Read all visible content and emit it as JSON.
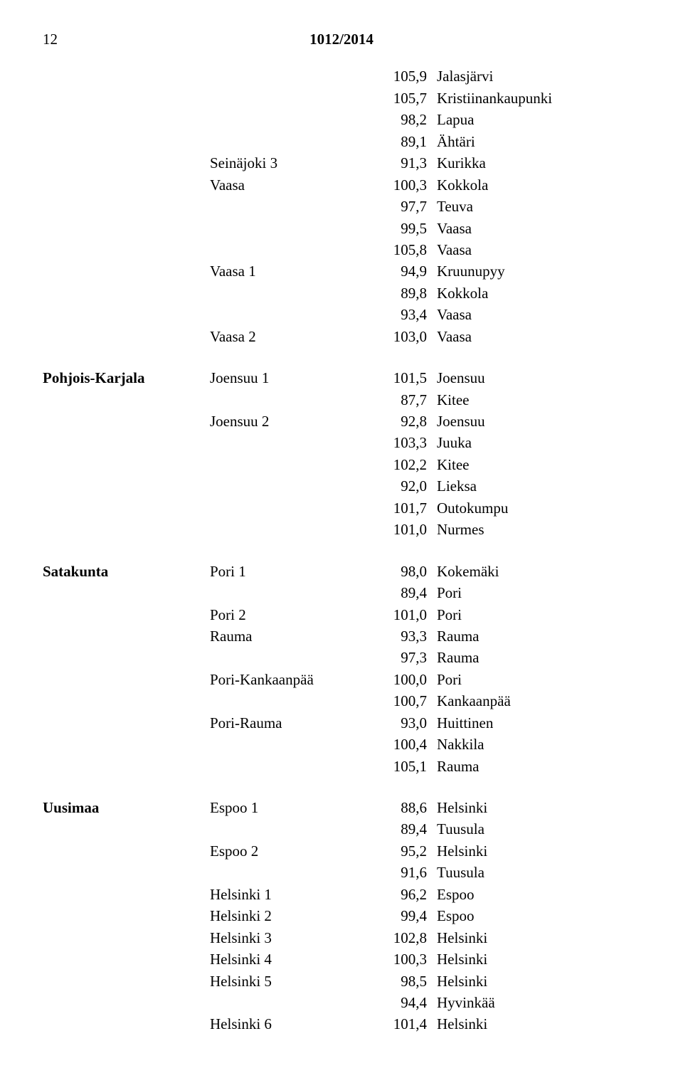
{
  "header": {
    "page_number": "12",
    "doc_id": "1012/2014"
  },
  "sections": [
    {
      "region": "",
      "groups": [
        {
          "area": "",
          "rows": [
            {
              "val": "105,9",
              "loc": "Jalasjärvi"
            },
            {
              "val": "105,7",
              "loc": "Kristiinankaupunki"
            },
            {
              "val": "98,2",
              "loc": "Lapua"
            },
            {
              "val": "89,1",
              "loc": "Ähtäri"
            }
          ]
        },
        {
          "area": "Seinäjoki 3",
          "rows": [
            {
              "val": "91,3",
              "loc": "Kurikka"
            }
          ]
        },
        {
          "area": "Vaasa",
          "rows": [
            {
              "val": "100,3",
              "loc": "Kokkola"
            },
            {
              "val": "97,7",
              "loc": "Teuva"
            },
            {
              "val": "99,5",
              "loc": "Vaasa"
            },
            {
              "val": "105,8",
              "loc": "Vaasa"
            }
          ]
        },
        {
          "area": "Vaasa 1",
          "rows": [
            {
              "val": "94,9",
              "loc": "Kruunupyy"
            },
            {
              "val": "89,8",
              "loc": "Kokkola"
            },
            {
              "val": "93,4",
              "loc": "Vaasa"
            }
          ]
        },
        {
          "area": "Vaasa 2",
          "rows": [
            {
              "val": "103,0",
              "loc": "Vaasa"
            }
          ]
        }
      ]
    },
    {
      "region": "Pohjois-Karjala",
      "groups": [
        {
          "area": "Joensuu 1",
          "rows": [
            {
              "val": "101,5",
              "loc": "Joensuu"
            },
            {
              "val": "87,7",
              "loc": "Kitee"
            }
          ]
        },
        {
          "area": "Joensuu 2",
          "rows": [
            {
              "val": "92,8",
              "loc": "Joensuu"
            },
            {
              "val": "103,3",
              "loc": "Juuka"
            },
            {
              "val": "102,2",
              "loc": "Kitee"
            },
            {
              "val": "92,0",
              "loc": "Lieksa"
            },
            {
              "val": "101,7",
              "loc": "Outokumpu"
            },
            {
              "val": "101,0",
              "loc": "Nurmes"
            }
          ]
        }
      ]
    },
    {
      "region": "Satakunta",
      "groups": [
        {
          "area": "Pori 1",
          "rows": [
            {
              "val": "98,0",
              "loc": "Kokemäki"
            },
            {
              "val": "89,4",
              "loc": "Pori"
            }
          ]
        },
        {
          "area": "Pori 2",
          "rows": [
            {
              "val": "101,0",
              "loc": "Pori"
            }
          ]
        },
        {
          "area": "Rauma",
          "rows": [
            {
              "val": "93,3",
              "loc": "Rauma"
            },
            {
              "val": "97,3",
              "loc": "Rauma"
            }
          ]
        },
        {
          "area": "Pori-Kankaanpää",
          "rows": [
            {
              "val": "100,0",
              "loc": "Pori"
            },
            {
              "val": "100,7",
              "loc": "Kankaanpää"
            }
          ]
        },
        {
          "area": "Pori-Rauma",
          "rows": [
            {
              "val": "93,0",
              "loc": "Huittinen"
            },
            {
              "val": "100,4",
              "loc": "Nakkila"
            },
            {
              "val": "105,1",
              "loc": "Rauma"
            }
          ]
        }
      ]
    },
    {
      "region": "Uusimaa",
      "groups": [
        {
          "area": "Espoo 1",
          "rows": [
            {
              "val": "88,6",
              "loc": "Helsinki"
            },
            {
              "val": "89,4",
              "loc": "Tuusula"
            }
          ]
        },
        {
          "area": "Espoo 2",
          "rows": [
            {
              "val": "95,2",
              "loc": "Helsinki"
            },
            {
              "val": "91,6",
              "loc": "Tuusula"
            }
          ]
        },
        {
          "area": "Helsinki 1",
          "rows": [
            {
              "val": "96,2",
              "loc": "Espoo"
            }
          ]
        },
        {
          "area": "Helsinki 2",
          "rows": [
            {
              "val": "99,4",
              "loc": "Espoo"
            }
          ]
        },
        {
          "area": "Helsinki 3",
          "rows": [
            {
              "val": "102,8",
              "loc": "Helsinki"
            }
          ]
        },
        {
          "area": "Helsinki 4",
          "rows": [
            {
              "val": "100,3",
              "loc": "Helsinki"
            }
          ]
        },
        {
          "area": "Helsinki 5",
          "rows": [
            {
              "val": "98,5",
              "loc": "Helsinki"
            },
            {
              "val": "94,4",
              "loc": "Hyvinkää"
            }
          ]
        },
        {
          "area": "Helsinki 6",
          "rows": [
            {
              "val": "101,4",
              "loc": "Helsinki"
            }
          ]
        }
      ]
    }
  ]
}
